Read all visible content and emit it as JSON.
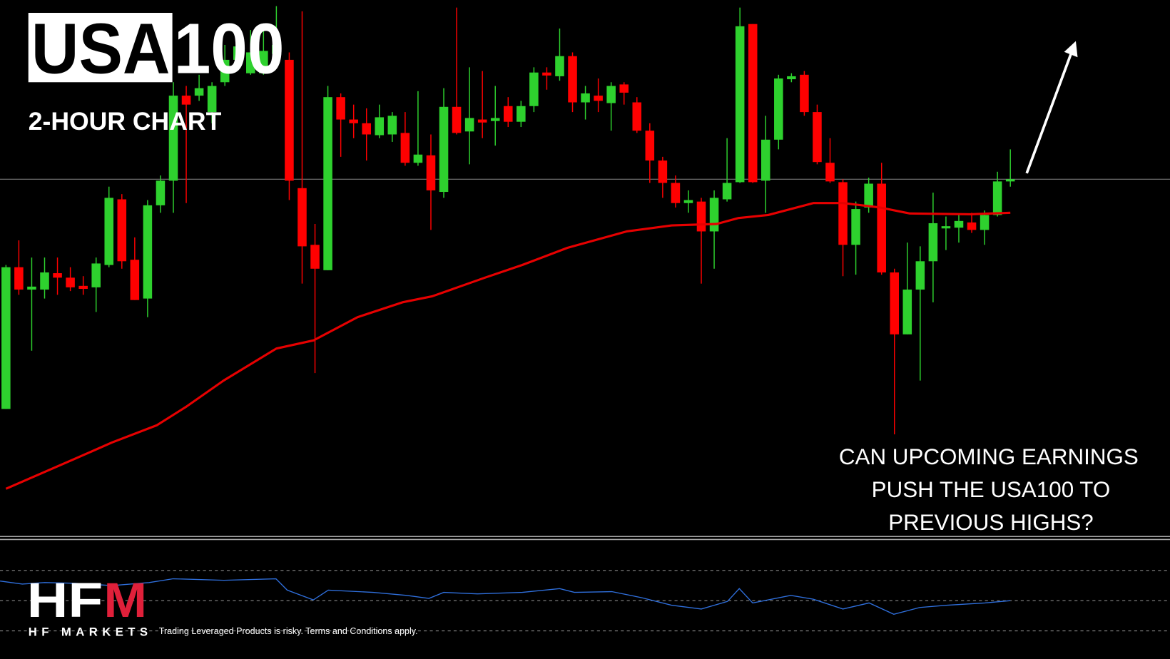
{
  "header": {
    "brand_boxed": "USA",
    "brand_plain": "100",
    "subtitle": "2-HOUR CHART"
  },
  "annotation": [
    "CAN UPCOMING EARNINGS",
    "PUSH THE USA100 TO",
    "PREVIOUS HIGHS?"
  ],
  "footer": {
    "logo_main": "HF",
    "logo_accent": "M",
    "logo_name": "HF MARKETS",
    "disclaimer": "Trading Leveraged Products is risky. Terms and Conditions apply."
  },
  "chart_data": [
    {
      "type": "candlestick",
      "up_color": "#2ed12e",
      "down_color": "#ff0000",
      "xlim": [
        -0.463,
        90.4
      ],
      "ylim": [
        0,
        720
      ],
      "open": [
        172,
        362,
        332,
        332,
        354,
        348,
        337,
        335,
        365,
        453,
        372,
        320,
        445,
        478,
        592,
        592,
        570,
        610,
        640,
        622,
        622,
        648,
        640,
        468,
        392,
        358,
        590,
        560,
        555,
        539,
        540,
        542,
        502,
        512,
        463,
        577,
        544,
        560,
        558,
        578,
        557,
        578,
        623,
        618,
        645,
        583,
        592,
        582,
        607,
        583,
        545,
        505,
        475,
        448,
        450,
        410,
        453,
        476,
        688,
        478,
        533,
        614,
        620,
        570,
        502,
        476,
        392,
        442,
        474,
        355,
        272,
        332,
        370,
        414,
        415,
        422,
        412,
        432,
        477
      ],
      "high": [
        365,
        398,
        375,
        375,
        375,
        362,
        350,
        375,
        470,
        460,
        402,
        452,
        485,
        610,
        605,
        620,
        610,
        660,
        670,
        680,
        685,
        712,
        650,
        705,
        420,
        605,
        595,
        580,
        575,
        580,
        570,
        570,
        598,
        540,
        602,
        710,
        630,
        625,
        605,
        590,
        585,
        630,
        630,
        682,
        650,
        605,
        615,
        610,
        610,
        590,
        555,
        510,
        485,
        465,
        455,
        465,
        535,
        710,
        688,
        565,
        620,
        622,
        625,
        580,
        535,
        480,
        450,
        482,
        502,
        360,
        395,
        390,
        462,
        430,
        432,
        435,
        438,
        490,
        520
      ],
      "low": [
        172,
        325,
        250,
        320,
        325,
        330,
        325,
        302,
        362,
        360,
        318,
        295,
        435,
        435,
        448,
        585,
        555,
        605,
        630,
        620,
        620,
        640,
        452,
        340,
        220,
        358,
        510,
        535,
        505,
        535,
        530,
        498,
        498,
        412,
        455,
        540,
        500,
        535,
        525,
        550,
        550,
        570,
        600,
        612,
        570,
        560,
        570,
        545,
        580,
        542,
        475,
        455,
        442,
        435,
        340,
        360,
        450,
        475,
        475,
        435,
        520,
        610,
        565,
        500,
        475,
        350,
        352,
        435,
        352,
        138,
        272,
        210,
        315,
        385,
        395,
        408,
        392,
        430,
        470
      ],
      "close": [
        362,
        332,
        336,
        355,
        348,
        335,
        333,
        367,
        455,
        370,
        318,
        445,
        478,
        592,
        580,
        602,
        605,
        640,
        658,
        650,
        652,
        660,
        478,
        390,
        360,
        590,
        560,
        555,
        540,
        563,
        565,
        502,
        513,
        465,
        577,
        542,
        562,
        556,
        562,
        557,
        578,
        623,
        619,
        645,
        583,
        595,
        585,
        605,
        596,
        545,
        505,
        475,
        448,
        452,
        410,
        455,
        475,
        685,
        476,
        533,
        615,
        618,
        570,
        503,
        477,
        392,
        440,
        474,
        355,
        272,
        332,
        370,
        421,
        417,
        424,
        412,
        432,
        477,
        480
      ],
      "moving_average": {
        "color": "#e60000",
        "x": [
          0,
          5.33,
          8.23,
          11.7,
          14.0,
          16.9,
          21.0,
          23.9,
          27.3,
          30.8,
          33.1,
          37.2,
          40.1,
          43.6,
          48.2,
          51.7,
          55.2,
          56.9,
          59.2,
          62.7,
          65.0,
          67.9,
          70.2,
          74.9,
          78
        ],
        "values": [
          65,
          105,
          127,
          150,
          175,
          210,
          253,
          264,
          295,
          315,
          323,
          348,
          365,
          388,
          410,
          418,
          420,
          428,
          432,
          448,
          448,
          442,
          434,
          433,
          435
        ]
      },
      "level_line": {
        "value": 480,
        "color": "#8a8a8a"
      }
    },
    {
      "type": "line",
      "color": "#2f6fdc",
      "xlim": [
        -0.463,
        90.4
      ],
      "ylim": [
        11.5,
        91
      ],
      "levels": [
        70,
        50,
        30
      ],
      "x": [
        -0.46,
        1.27,
        3.01,
        5.33,
        8.23,
        11.12,
        12.98,
        16.92,
        20.97,
        21.84,
        23.87,
        25.03,
        28.5,
        31.11,
        32.85,
        34.0,
        36.62,
        40.1,
        43.0,
        44.15,
        47.05,
        49.36,
        51.68,
        54.0,
        56.03,
        56.95,
        57.99,
        60.95,
        62.69,
        65.0,
        67.03,
        68.95,
        70.97,
        73.11,
        76.01,
        78.0
      ],
      "values": [
        63,
        61,
        62,
        61.5,
        60,
        62,
        64.5,
        63.5,
        64.5,
        57,
        50.5,
        57,
        55.5,
        53.5,
        51.5,
        55.5,
        54.5,
        55.5,
        58,
        55.5,
        56,
        52,
        47,
        44.5,
        49.5,
        58,
        48.5,
        53.5,
        51,
        44.5,
        48.5,
        41,
        45.5,
        47,
        48.5,
        50
      ]
    }
  ]
}
